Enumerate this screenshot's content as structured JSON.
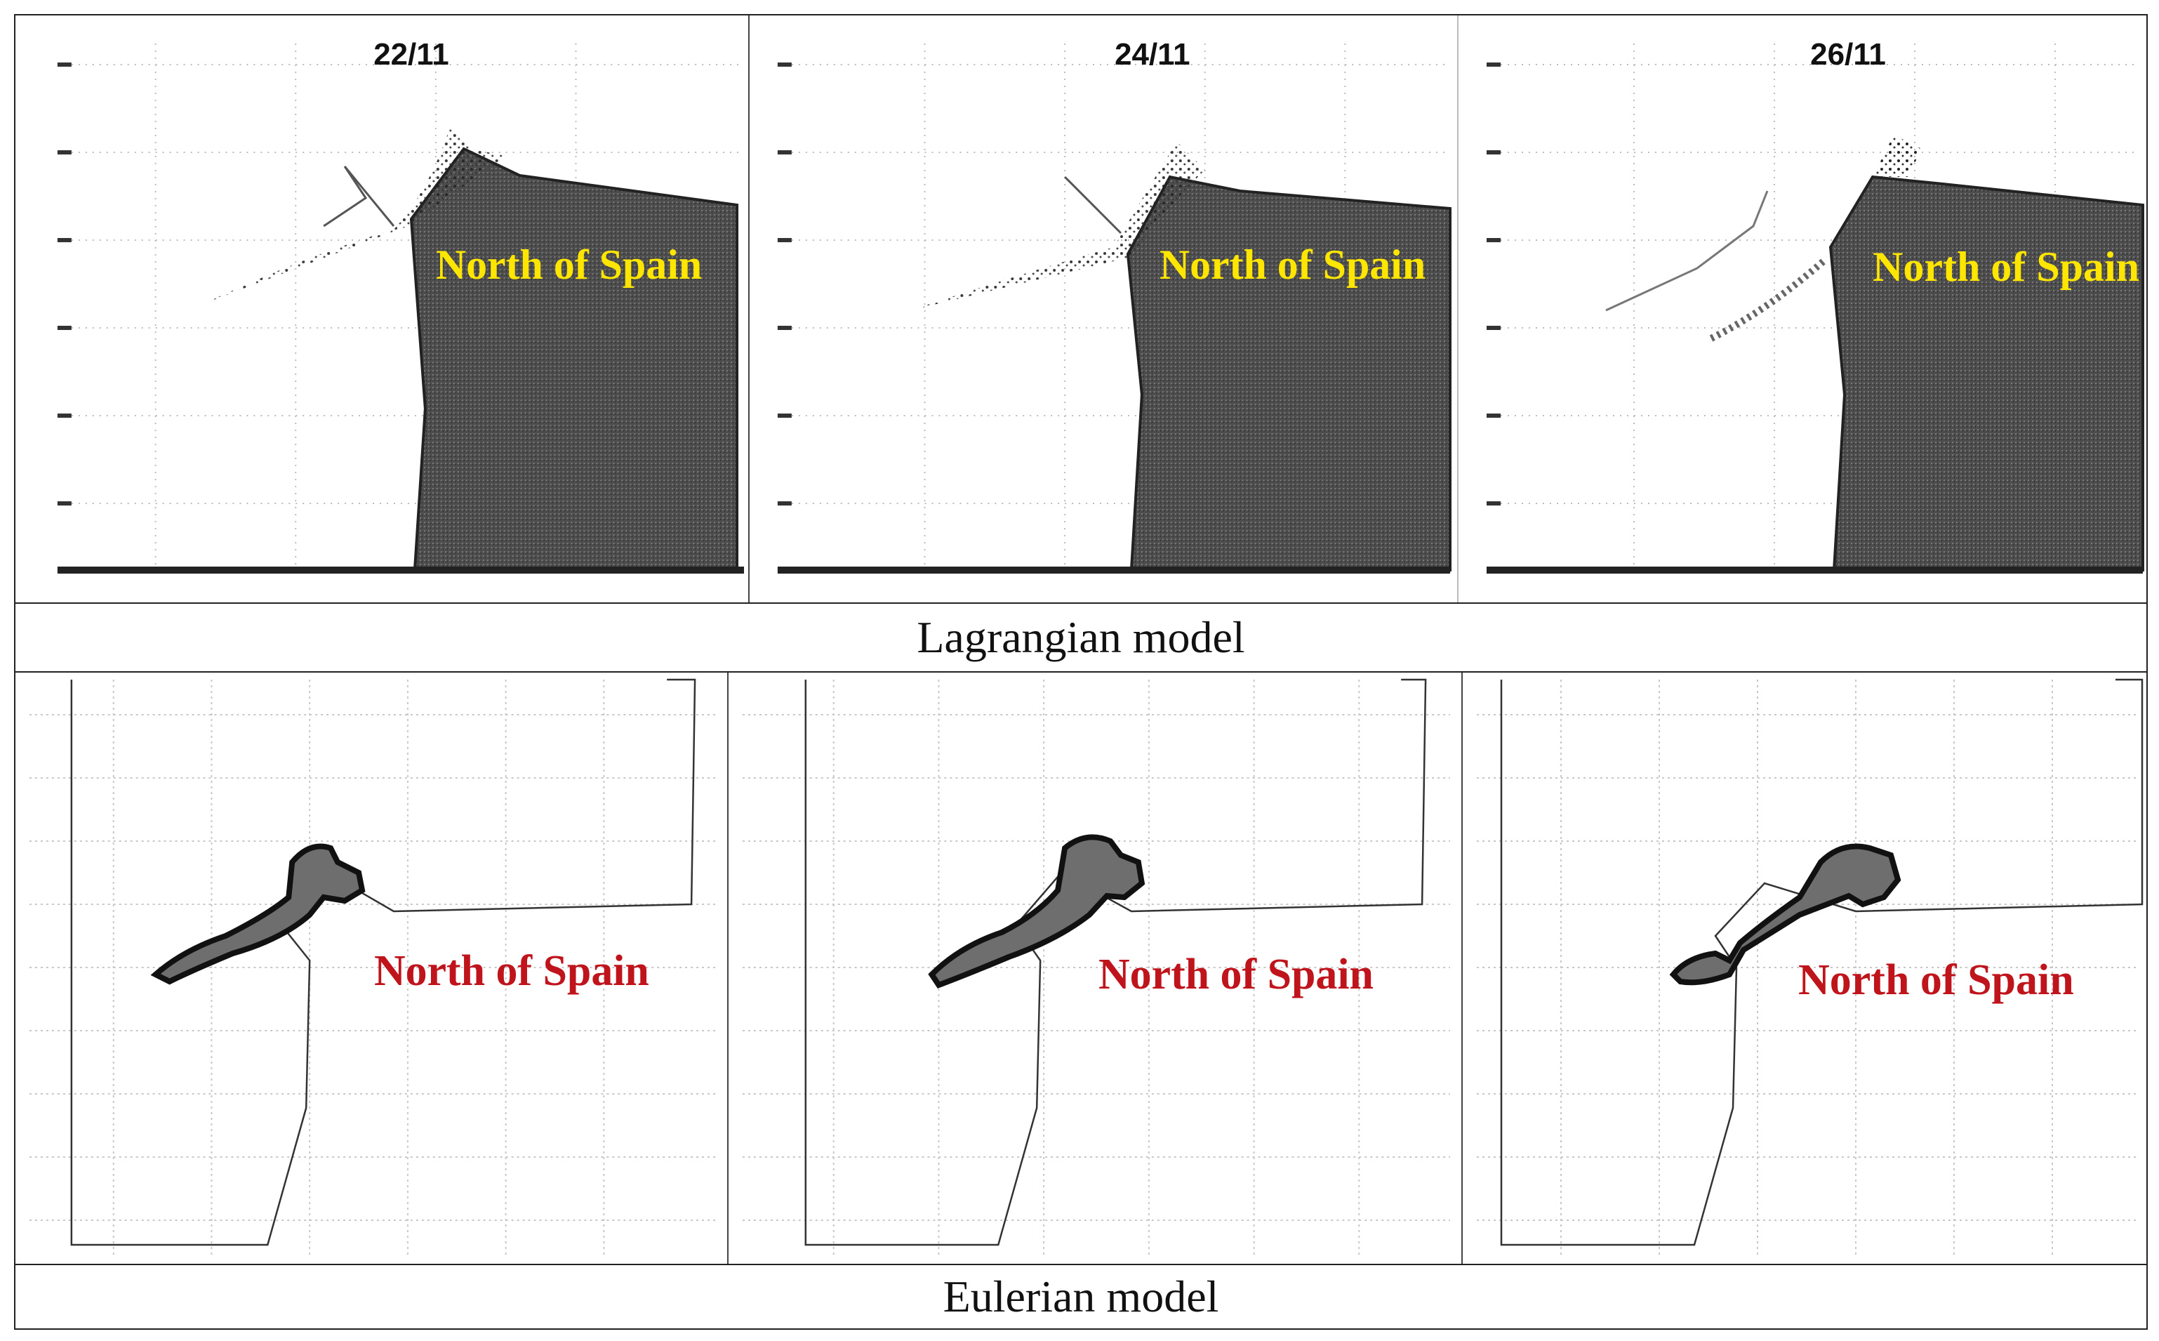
{
  "lagrangian": {
    "caption": "Lagrangian model",
    "panels": [
      {
        "date": "22/11",
        "region_label": "North of Spain"
      },
      {
        "date": "24/11",
        "region_label": "North of Spain"
      },
      {
        "date": "26/11",
        "region_label": "North of Spain"
      }
    ]
  },
  "eulerian": {
    "caption": "Eulerian model",
    "panels": [
      {
        "region_label": "North of Spain"
      },
      {
        "region_label": "North of Spain"
      },
      {
        "region_label": "North of Spain"
      }
    ]
  },
  "colors": {
    "lagrangian_label": "#ffe600",
    "eulerian_label": "#c0141c",
    "land_fill": "#5a5a5a"
  }
}
